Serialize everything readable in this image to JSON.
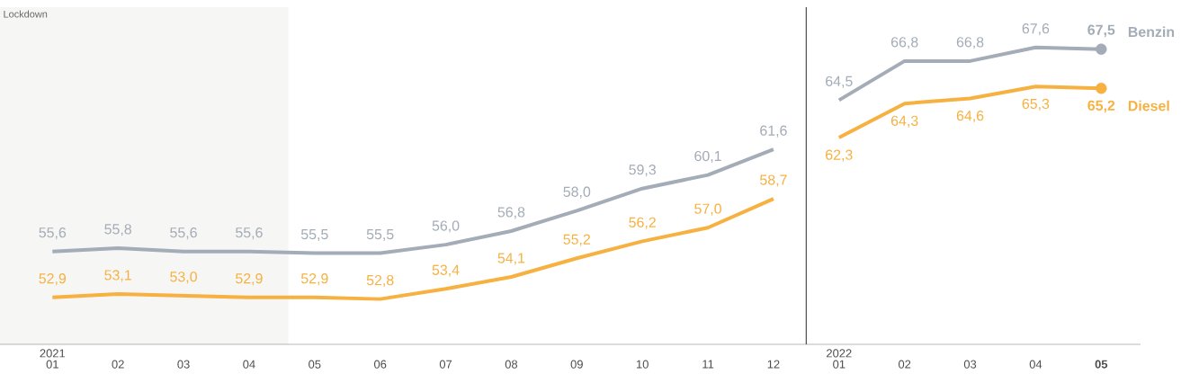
{
  "chart_data": {
    "type": "line",
    "categories": [
      "01",
      "02",
      "03",
      "04",
      "05",
      "06",
      "07",
      "08",
      "09",
      "10",
      "11",
      "12",
      "01",
      "02",
      "03",
      "04",
      "05"
    ],
    "series": [
      {
        "name": "Benzin",
        "color": "#a3acb7",
        "values": [
          55.6,
          55.8,
          55.6,
          55.6,
          55.5,
          55.5,
          56.0,
          56.8,
          58.0,
          59.3,
          60.1,
          61.6,
          64.5,
          66.8,
          66.8,
          67.6,
          67.5
        ],
        "value_labels": [
          "55,6",
          "55,8",
          "55,6",
          "55,6",
          "55,5",
          "55,5",
          "56,0",
          "56,8",
          "58,0",
          "59,3",
          "60,1",
          "61,6",
          "64,5",
          "66,8",
          "66,8",
          "67,6",
          "67,5"
        ]
      },
      {
        "name": "Diesel",
        "color": "#f6b141",
        "values": [
          52.9,
          53.1,
          53.0,
          52.9,
          52.9,
          52.8,
          53.4,
          54.1,
          55.2,
          56.2,
          57.0,
          58.7,
          62.3,
          64.3,
          64.6,
          65.3,
          65.2
        ],
        "value_labels": [
          "52,9",
          "53,1",
          "53,0",
          "52,9",
          "52,9",
          "52,8",
          "53,4",
          "54,1",
          "55,2",
          "56,2",
          "57,0",
          "58,7",
          "62,3",
          "64,3",
          "64,6",
          "65,3",
          "65,2"
        ]
      }
    ],
    "tick_labels": "x",
    "legend": false,
    "grid": false,
    "annotations": [
      "Lockdown",
      "2021",
      "2022"
    ]
  }
}
